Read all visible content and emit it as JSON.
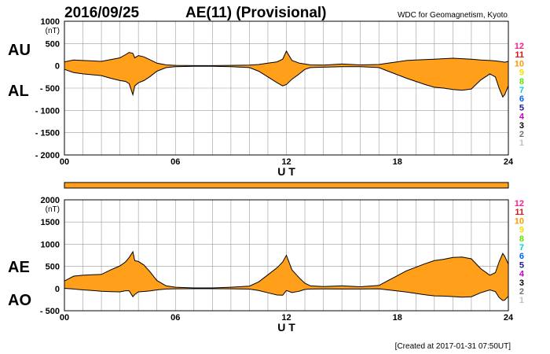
{
  "header": {
    "date": "2016/09/25",
    "title": "AE(11) (Provisional)",
    "source": "WDC for Geomagnetism, Kyoto"
  },
  "footer": {
    "created": "[Created at 2017-01-31 07:50UT]"
  },
  "colors": {
    "fill": "#ff9f1a",
    "line": "#000000",
    "grid": "#9a9a9a"
  },
  "station_legend": {
    "items": [
      {
        "label": "12",
        "color": "#ff1a8c"
      },
      {
        "label": "11",
        "color": "#e01414"
      },
      {
        "label": "10",
        "color": "#ff9900"
      },
      {
        "label": "9",
        "color": "#f0e000"
      },
      {
        "label": "8",
        "color": "#66e000"
      },
      {
        "label": "7",
        "color": "#00d0d0"
      },
      {
        "label": "6",
        "color": "#0066ff"
      },
      {
        "label": "5",
        "color": "#1a1aa0"
      },
      {
        "label": "4",
        "color": "#cc00cc"
      },
      {
        "label": "3",
        "color": "#000000"
      },
      {
        "label": "2",
        "color": "#707070"
      },
      {
        "label": "1",
        "color": "#c0c0c0"
      }
    ]
  },
  "chart_data": [
    {
      "type": "area",
      "name": "AU/AL",
      "series_labels": [
        "AU",
        "AL"
      ],
      "unit_label": "(nT)",
      "xlabel": "U T",
      "x_ticks": [
        "00",
        "06",
        "12",
        "18",
        "24"
      ],
      "xlim": [
        0,
        24
      ],
      "ylim": [
        -2000,
        1000
      ],
      "y_ticks": [
        "1000",
        "500",
        "0",
        "- 500",
        "- 1000",
        "- 1500",
        "- 2000"
      ],
      "y_tick_values": [
        1000,
        500,
        0,
        -500,
        -1000,
        -1500,
        -2000
      ],
      "grid": true,
      "x": [
        0,
        0.5,
        1,
        1.5,
        2,
        2.5,
        3,
        3.3,
        3.5,
        3.7,
        3.8,
        4,
        4.3,
        4.6,
        5,
        5.5,
        6,
        7,
        8,
        9,
        10,
        10.5,
        11,
        11.5,
        11.8,
        12,
        12.3,
        12.7,
        13,
        13.3,
        14,
        15,
        16,
        17,
        17.5,
        18,
        18.5,
        19,
        19.5,
        20,
        20.5,
        21,
        21.5,
        22,
        22.5,
        23,
        23.3,
        23.5,
        23.7,
        23.8,
        24
      ],
      "upper": [
        90,
        130,
        120,
        110,
        100,
        140,
        180,
        250,
        300,
        280,
        180,
        230,
        200,
        140,
        60,
        20,
        10,
        5,
        5,
        10,
        15,
        30,
        60,
        90,
        150,
        330,
        120,
        60,
        40,
        20,
        15,
        40,
        20,
        30,
        60,
        90,
        120,
        130,
        140,
        150,
        160,
        170,
        160,
        150,
        130,
        120,
        110,
        100,
        90,
        80,
        100
      ],
      "lower": [
        -80,
        -150,
        -180,
        -200,
        -220,
        -280,
        -330,
        -350,
        -400,
        -650,
        -450,
        -380,
        -330,
        -250,
        -120,
        -40,
        -20,
        -10,
        -10,
        -20,
        -40,
        -120,
        -250,
        -380,
        -450,
        -420,
        -300,
        -180,
        -80,
        -40,
        -30,
        -20,
        -20,
        -40,
        -120,
        -200,
        -280,
        -350,
        -420,
        -480,
        -500,
        -530,
        -550,
        -520,
        -320,
        -180,
        -250,
        -500,
        -700,
        -650,
        -450
      ]
    },
    {
      "type": "area",
      "name": "AE/AO",
      "series_labels": [
        "AE",
        "AO"
      ],
      "unit_label": "(nT)",
      "xlabel": "U T",
      "x_ticks": [
        "00",
        "06",
        "12",
        "18",
        "24"
      ],
      "xlim": [
        0,
        24
      ],
      "ylim": [
        -500,
        2000
      ],
      "y_ticks": [
        "2000",
        "1500",
        "1000",
        "500",
        "0",
        "- 500"
      ],
      "y_tick_values": [
        2000,
        1500,
        1000,
        500,
        0,
        -500
      ],
      "grid": true,
      "x": [
        0,
        0.5,
        1,
        1.5,
        2,
        2.5,
        3,
        3.3,
        3.5,
        3.7,
        3.8,
        4,
        4.3,
        4.6,
        5,
        5.5,
        6,
        7,
        8,
        9,
        10,
        10.5,
        11,
        11.5,
        11.8,
        12,
        12.3,
        12.7,
        13,
        13.3,
        14,
        15,
        16,
        17,
        17.5,
        18,
        18.5,
        19,
        19.5,
        20,
        20.5,
        21,
        21.5,
        22,
        22.5,
        23,
        23.3,
        23.5,
        23.7,
        23.8,
        24
      ],
      "upper": [
        170,
        280,
        300,
        310,
        320,
        420,
        510,
        600,
        700,
        830,
        630,
        610,
        530,
        390,
        180,
        60,
        30,
        15,
        15,
        30,
        55,
        150,
        310,
        470,
        600,
        750,
        420,
        240,
        120,
        60,
        45,
        60,
        40,
        70,
        180,
        290,
        400,
        480,
        560,
        630,
        660,
        700,
        710,
        670,
        450,
        300,
        360,
        600,
        790,
        730,
        550
      ],
      "lower": [
        5,
        -10,
        -30,
        -45,
        -60,
        -70,
        -75,
        -50,
        -50,
        -185,
        -135,
        -75,
        -65,
        -55,
        -30,
        -10,
        -5,
        -3,
        -3,
        -5,
        -12,
        -45,
        -95,
        -145,
        -150,
        -45,
        -90,
        -60,
        -20,
        -10,
        -8,
        -10,
        -10,
        -5,
        -30,
        -55,
        -80,
        -110,
        -140,
        -165,
        -170,
        -180,
        -195,
        -185,
        -95,
        -30,
        -70,
        -200,
        -270,
        -260,
        -175
      ]
    }
  ]
}
